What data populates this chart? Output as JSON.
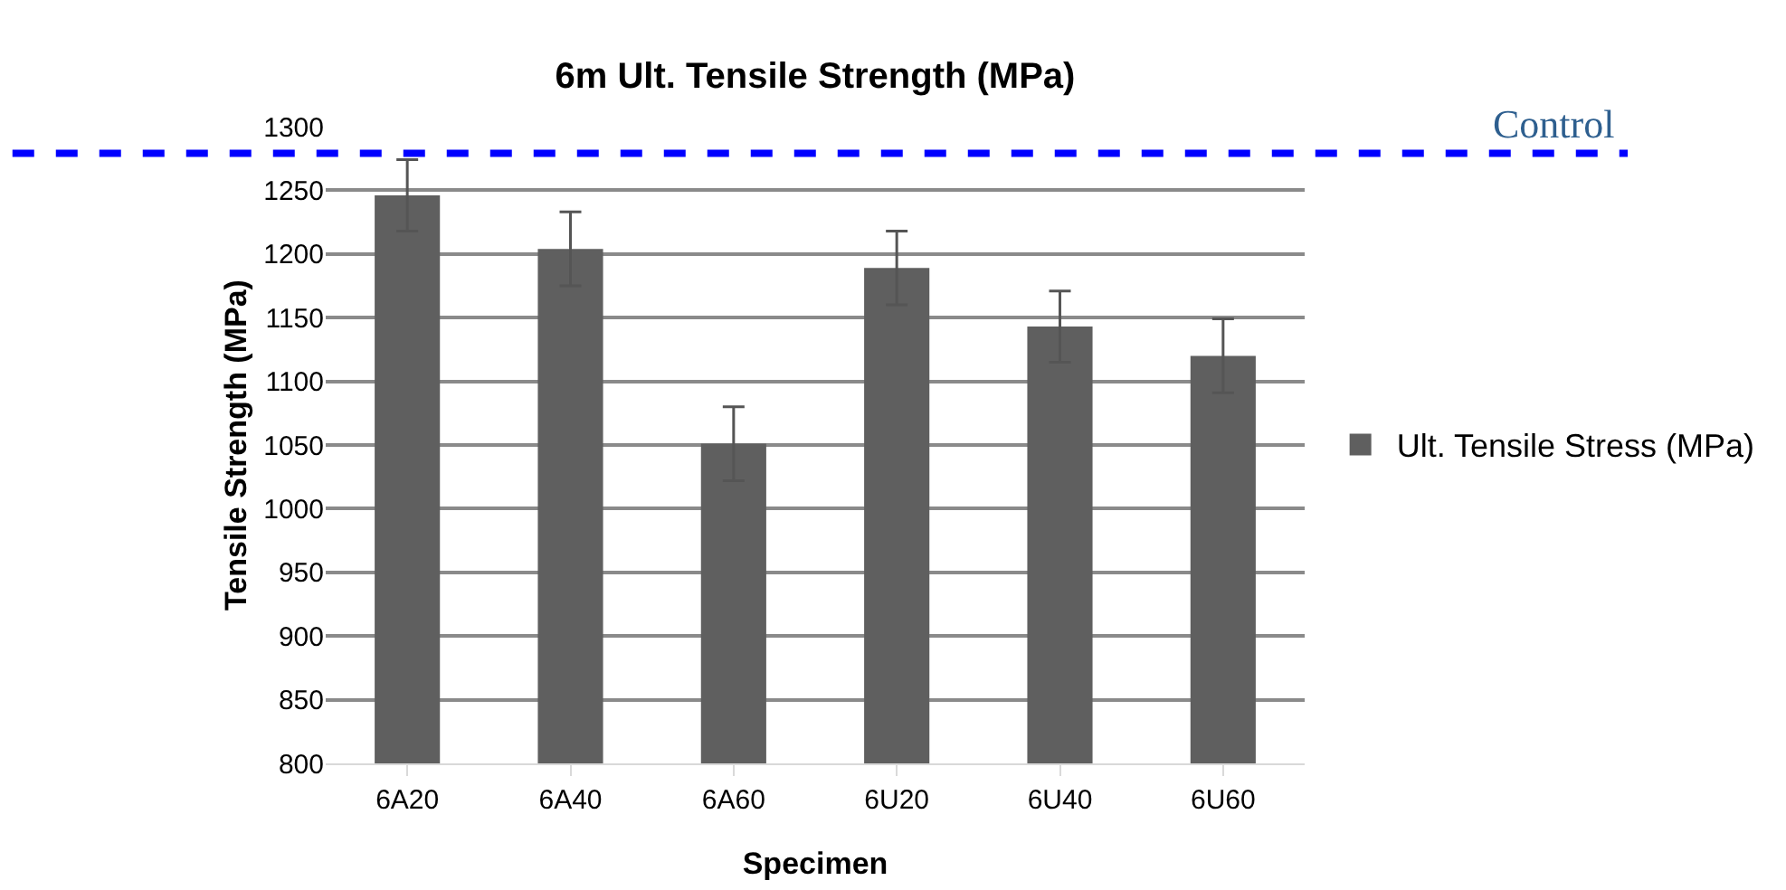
{
  "chart_data": {
    "type": "bar",
    "title": "6m Ult. Tensile Strength (MPa)",
    "xlabel": "Specimen",
    "ylabel": "Tensile Strength (MPa)",
    "categories": [
      "6A20",
      "6A40",
      "6A60",
      "6U20",
      "6U40",
      "6U60"
    ],
    "series": [
      {
        "name": "Ult. Tensile Stress (MPa)",
        "color": "#5f5f5f",
        "values": [
          1246,
          1204,
          1051,
          1189,
          1143,
          1120
        ],
        "errors": [
          28,
          29,
          29,
          29,
          28,
          29
        ]
      }
    ],
    "ylim": [
      800,
      1300
    ],
    "yticks": [
      800,
      850,
      900,
      950,
      1000,
      1050,
      1100,
      1150,
      1200,
      1250,
      1300
    ],
    "grid": "y",
    "legend": "right",
    "ref_lines": [
      {
        "axis": "y",
        "value": 1279,
        "label": "Control",
        "color": "#0000ff",
        "line_style": "dashed"
      }
    ]
  }
}
